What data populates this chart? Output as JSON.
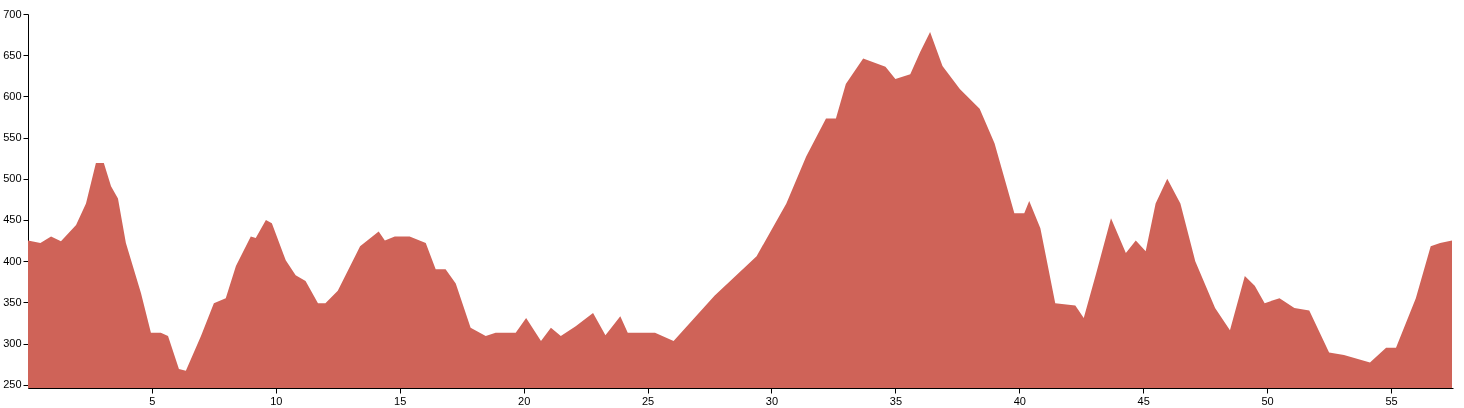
{
  "chart_data": {
    "type": "area",
    "x": [
      0,
      0.5,
      0.93,
      1.33,
      1.94,
      2.34,
      2.74,
      3.06,
      3.35,
      3.63,
      3.95,
      4.56,
      4.96,
      5.36,
      5.65,
      6.09,
      6.37,
      6.98,
      7.5,
      7.98,
      8.39,
      8.99,
      9.19,
      9.6,
      9.84,
      10.4,
      10.8,
      11.2,
      11.7,
      12.0,
      12.5,
      13.4,
      14.15,
      14.4,
      14.8,
      15.4,
      16.05,
      16.45,
      16.85,
      17.26,
      17.86,
      18.47,
      18.87,
      19.68,
      20.1,
      20.7,
      21.1,
      21.5,
      22.1,
      22.8,
      23.3,
      23.9,
      24.2,
      25.3,
      26.05,
      27.7,
      29.4,
      30.6,
      31.4,
      32.2,
      32.6,
      33.0,
      33.7,
      34.6,
      35.0,
      35.6,
      36.0,
      36.4,
      36.9,
      37.6,
      38.4,
      39.0,
      39.8,
      40.2,
      40.4,
      40.85,
      41.45,
      42.26,
      42.6,
      43.1,
      43.7,
      44.3,
      44.7,
      45.1,
      45.5,
      45.97,
      46.5,
      47.1,
      47.9,
      48.5,
      49.1,
      49.5,
      49.9,
      50.5,
      51.1,
      51.7,
      52.5,
      53.1,
      54.15,
      54.8,
      55.2,
      56.0,
      56.6,
      56.98,
      57.46
    ],
    "series": [
      {
        "color": "#cf6358",
        "values": [
          425,
          422,
          430,
          424,
          444,
          470,
          519,
          519,
          491,
          476,
          422,
          361,
          313,
          313,
          309,
          269,
          267,
          309,
          349,
          355,
          394,
          430,
          428,
          450,
          446,
          401,
          383,
          376,
          349,
          349,
          364,
          418,
          436,
          425,
          430,
          430,
          422,
          390,
          390,
          373,
          319,
          309,
          313,
          313,
          331,
          303,
          319,
          309,
          321,
          337,
          310,
          333,
          313,
          313,
          303,
          358,
          406,
          470,
          527,
          573,
          573,
          615,
          646,
          636,
          621,
          627,
          654,
          678,
          637,
          609,
          585,
          543,
          458,
          458,
          473,
          440,
          349,
          346,
          331,
          385,
          452,
          410,
          425,
          412,
          470,
          500,
          470,
          400,
          343,
          316,
          382,
          370,
          349,
          355,
          343,
          340,
          289,
          286,
          277,
          295,
          295,
          355,
          418,
          422,
          425
        ]
      }
    ],
    "xlim": [
      0,
      57.5
    ],
    "ylim": [
      246,
      700
    ],
    "xticks": [
      5,
      10,
      15,
      20,
      25,
      30,
      35,
      40,
      45,
      50,
      55
    ],
    "yticks": [
      250,
      300,
      350,
      400,
      450,
      500,
      550,
      600,
      650,
      700
    ],
    "grid": false
  }
}
